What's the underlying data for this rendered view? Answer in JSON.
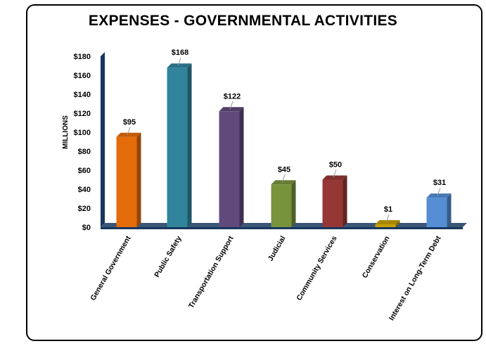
{
  "chart_data": {
    "type": "bar",
    "title": "EXPENSES - GOVERNMENTAL ACTIVITIES",
    "ylabel": "MILLIONS",
    "xlabel": "",
    "categories": [
      "General Government",
      "Public Safety",
      "Transportation Support",
      "Judicial",
      "Community Services",
      "Conservation",
      "Interest on Long-Term Debt"
    ],
    "values": [
      95,
      168,
      122,
      45,
      50,
      1,
      31
    ],
    "data_labels": [
      "$95",
      "$168",
      "$122",
      "$45",
      "$50",
      "$1",
      "$31"
    ],
    "colors": [
      "#e46c0a",
      "#31849b",
      "#604a7b",
      "#77933c",
      "#953735",
      "#c6a000",
      "#558ed5"
    ],
    "ylim": [
      0,
      180
    ],
    "yticks": [
      0,
      20,
      40,
      60,
      80,
      100,
      120,
      140,
      160,
      180
    ],
    "ytick_labels": [
      "$0",
      "$20",
      "$40",
      "$60",
      "$80",
      "$100",
      "$120",
      "$140",
      "$160",
      "$180"
    ],
    "style": "3d-columns",
    "grid": false,
    "legend": "none",
    "axis_color": "#17375e"
  }
}
